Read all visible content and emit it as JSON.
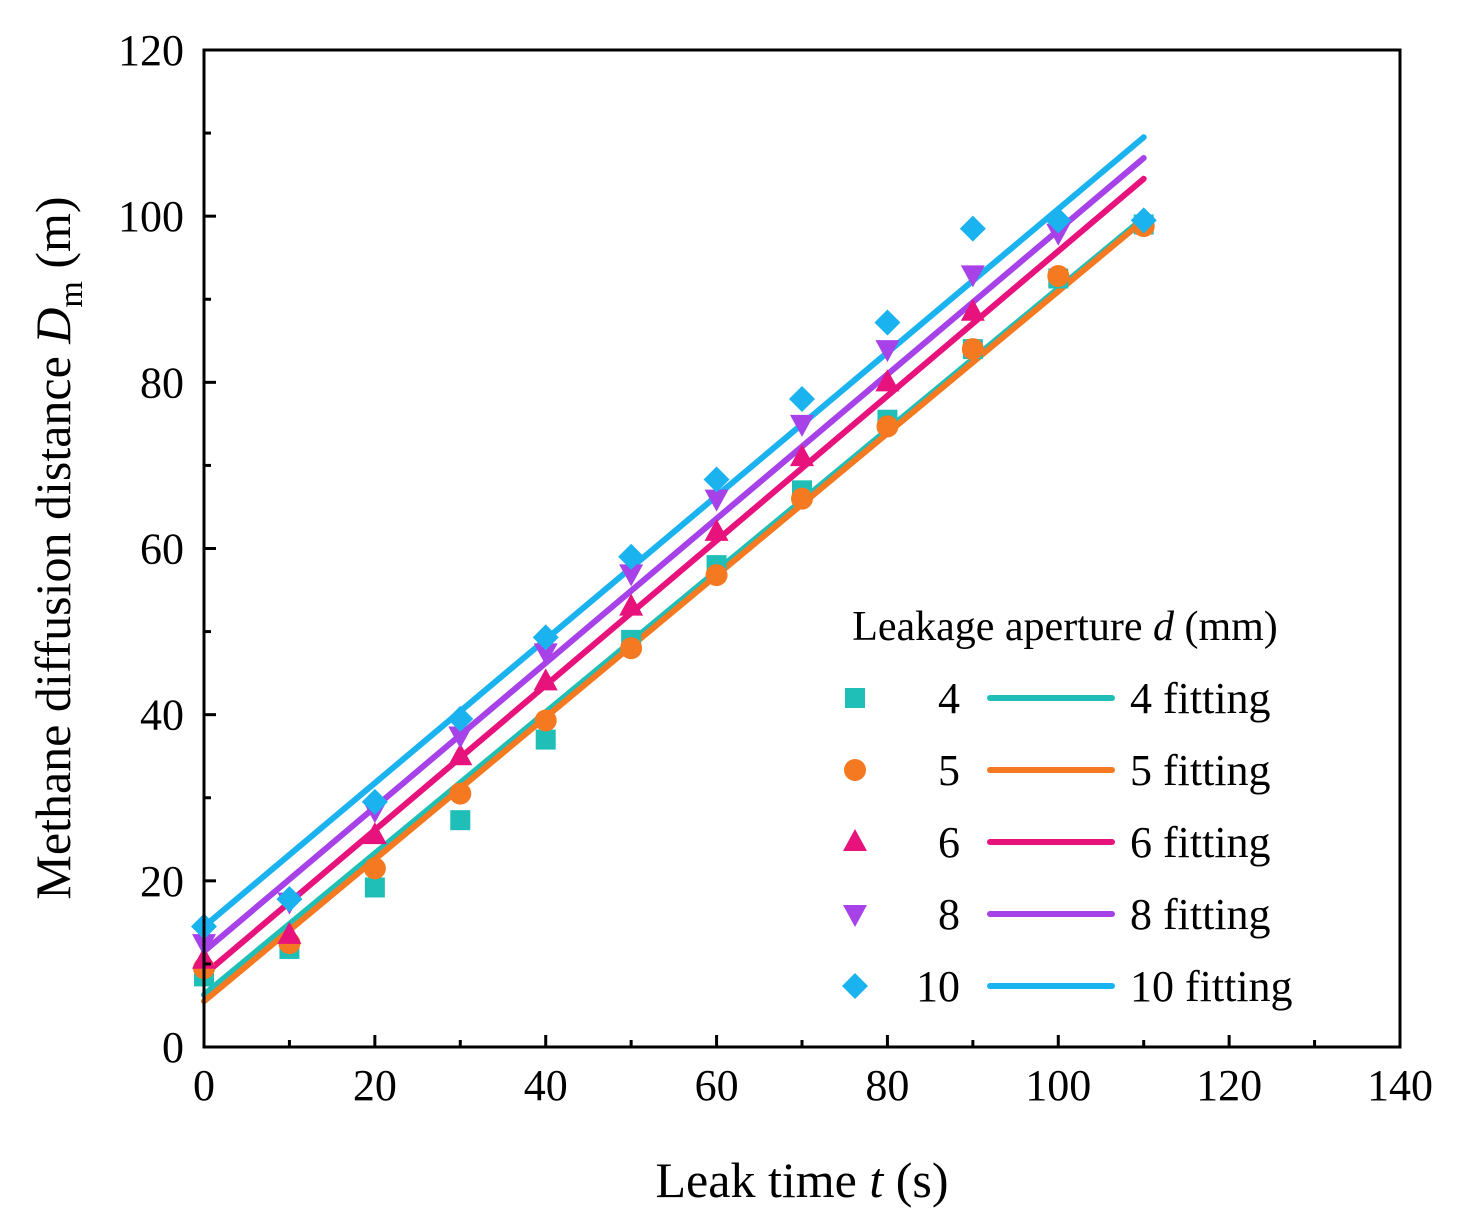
{
  "chart_data": {
    "type": "scatter",
    "title": "",
    "xlabel": {
      "prefix": "Leak time ",
      "var": "t",
      "suffix": " (s)"
    },
    "ylabel": {
      "prefix": "Methane diffusion distance ",
      "var": "D",
      "sub": "m",
      "suffix": " (m)"
    },
    "xlim": [
      0,
      140
    ],
    "ylim": [
      0,
      120
    ],
    "x_ticks": [
      "0",
      "20",
      "40",
      "60",
      "80",
      "100",
      "120",
      "140"
    ],
    "y_ticks": [
      "0",
      "20",
      "40",
      "60",
      "80",
      "100",
      "120"
    ],
    "grid": false,
    "legend": {
      "position": "bottom-right",
      "title_prefix": "Leakage aperture ",
      "title_var": "d",
      "title_suffix": " (mm)"
    },
    "series": [
      {
        "name": "4",
        "fit_name": "4 fitting",
        "marker": "square",
        "color": "#1fbfb8",
        "x": [
          0,
          10,
          20,
          30,
          40,
          50,
          60,
          70,
          80,
          90,
          100,
          110
        ],
        "y": [
          8.5,
          11.8,
          19.2,
          27.3,
          37,
          49,
          58,
          67,
          75.5,
          84,
          92.5,
          99
        ],
        "fit": {
          "x": [
            0,
            110
          ],
          "y": [
            6.3,
            99.8
          ]
        }
      },
      {
        "name": "5",
        "fit_name": "5 fitting",
        "marker": "circle",
        "color": "#f47920",
        "x": [
          0,
          10,
          20,
          30,
          40,
          50,
          60,
          70,
          80,
          90,
          100,
          110
        ],
        "y": [
          9.5,
          12.5,
          21.5,
          30.5,
          39.3,
          48,
          56.8,
          66,
          74.7,
          84,
          92.8,
          98.8
        ],
        "fit": {
          "x": [
            0,
            110
          ],
          "y": [
            5.5,
            99.5
          ]
        }
      },
      {
        "name": "6",
        "fit_name": "6 fitting",
        "marker": "triangle-up",
        "color": "#e8127c",
        "x": [
          0,
          10,
          20,
          30,
          40,
          50,
          60,
          70,
          80,
          90
        ],
        "y": [
          10.5,
          13.5,
          25.5,
          35,
          44,
          53,
          62,
          71,
          80,
          88.5
        ],
        "fit": {
          "x": [
            0,
            110
          ],
          "y": [
            8.7,
            104.5
          ]
        }
      },
      {
        "name": "8",
        "fit_name": "8 fitting",
        "marker": "triangle-down",
        "color": "#a742e8",
        "x": [
          0,
          10,
          20,
          30,
          40,
          50,
          60,
          70,
          80,
          90,
          100
        ],
        "y": [
          12.5,
          17.5,
          28.5,
          37.5,
          47.5,
          57,
          66,
          75,
          84,
          93,
          98
        ],
        "fit": {
          "x": [
            0,
            110
          ],
          "y": [
            11.5,
            107
          ]
        }
      },
      {
        "name": "10",
        "fit_name": "10 fitting",
        "marker": "diamond",
        "color": "#1ab3ef",
        "x": [
          0,
          10,
          20,
          30,
          40,
          50,
          60,
          70,
          80,
          90,
          100,
          110
        ],
        "y": [
          14.5,
          17.8,
          29.5,
          39.5,
          49.3,
          59,
          68.3,
          78,
          87.2,
          98.5,
          99.5,
          99.5
        ],
        "fit": {
          "x": [
            0,
            110
          ],
          "y": [
            14.5,
            109.5
          ]
        }
      }
    ]
  }
}
